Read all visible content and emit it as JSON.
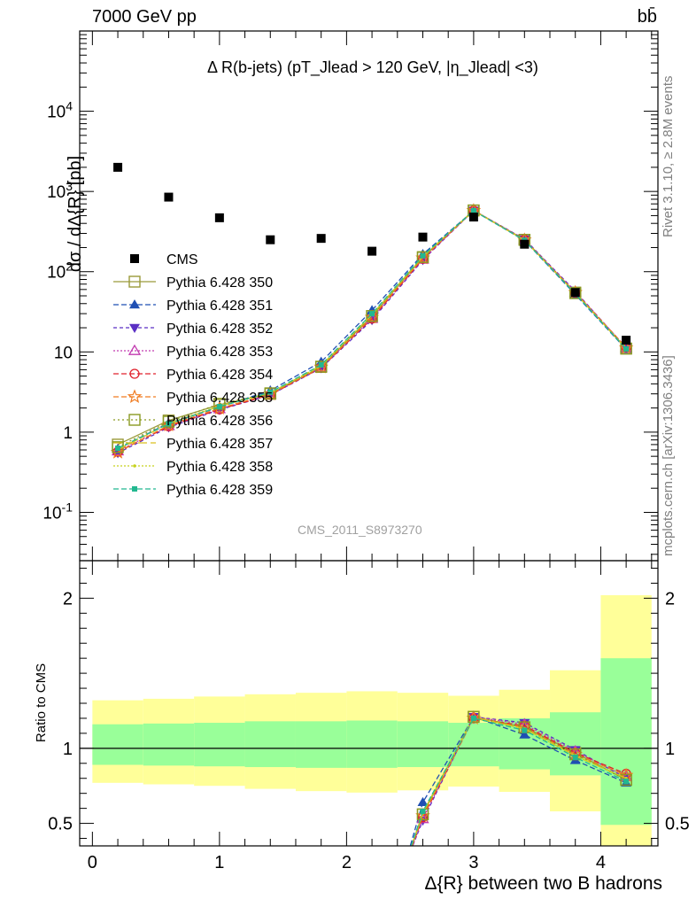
{
  "header": {
    "energy_label": "7000 GeV pp",
    "process_label": "bb̄",
    "rivet_label": "Rivet 3.1.10, ≥ 2.8M events",
    "mcplots_label": "mcplots.cern.ch [arXiv:1306.3436]"
  },
  "chart_data": [
    {
      "type": "scatter",
      "title": "Δ R(b-jets) (pT_Jlead > 120 GeV, |η_Jlead| <3)",
      "analysis_id": "CMS_2011_S8973270",
      "ylabel": "dσ / dΔ{R} [pb]",
      "yscale": "log",
      "ylim": [
        0.025,
        100000
      ],
      "xlim": [
        -0.1,
        4.45
      ],
      "y_tick_labels": [
        "10^-1",
        "1",
        "10",
        "10^2",
        "10^3",
        "10^4"
      ],
      "x": [
        0.2,
        0.6,
        1.0,
        1.4,
        1.8,
        2.2,
        2.6,
        3.0,
        3.4,
        3.8,
        4.2
      ],
      "data": {
        "name": "CMS",
        "values": [
          2000,
          850,
          470,
          250,
          260,
          180,
          270,
          480,
          220,
          55,
          14
        ]
      },
      "series": [
        {
          "name": "Pythia 6.428 350",
          "color": "#9a9a3a",
          "values": [
            0.7,
            1.4,
            2.2,
            3.0,
            6.5,
            28,
            150,
            580,
            250,
            55,
            11
          ]
        },
        {
          "name": "Pythia 6.428 351",
          "color": "#1f4fb3",
          "values": [
            0.62,
            1.3,
            2.05,
            3.3,
            7.5,
            33,
            165,
            575,
            245,
            52,
            10.8
          ]
        },
        {
          "name": "Pythia 6.428 352",
          "color": "#5a2fc4",
          "values": [
            0.55,
            1.15,
            1.9,
            2.9,
            6.3,
            25,
            140,
            580,
            255,
            57,
            11.2
          ]
        },
        {
          "name": "Pythia 6.428 353",
          "color": "#c23bb0",
          "values": [
            0.58,
            1.2,
            1.95,
            2.95,
            6.4,
            26,
            142,
            582,
            252,
            56,
            11.3
          ]
        },
        {
          "name": "Pythia 6.428 354",
          "color": "#e0202c",
          "values": [
            0.57,
            1.18,
            1.92,
            2.92,
            6.35,
            26,
            145,
            578,
            250,
            55,
            11.4
          ]
        },
        {
          "name": "Pythia 6.428 355",
          "color": "#f07c22",
          "values": [
            0.56,
            1.22,
            1.98,
            2.98,
            6.45,
            27,
            148,
            577,
            248,
            55,
            11.2
          ]
        },
        {
          "name": "Pythia 6.428 356",
          "color": "#8a9a22",
          "values": [
            0.65,
            1.35,
            2.25,
            3.05,
            6.55,
            28,
            152,
            580,
            249,
            54,
            11.0
          ]
        },
        {
          "name": "Pythia 6.428 357",
          "color": "#d9c01e",
          "values": [
            0.6,
            1.28,
            2.1,
            3.1,
            6.8,
            29,
            155,
            579,
            247,
            54,
            11.1
          ]
        },
        {
          "name": "Pythia 6.428 358",
          "color": "#c6d21c",
          "values": [
            0.61,
            1.29,
            2.12,
            3.08,
            6.7,
            29,
            154,
            578,
            248,
            54,
            11.1
          ]
        },
        {
          "name": "Pythia 6.428 359",
          "color": "#22b890",
          "values": [
            0.63,
            1.27,
            2.08,
            3.15,
            6.9,
            30,
            158,
            576,
            246,
            53,
            10.9
          ]
        }
      ]
    },
    {
      "type": "line",
      "ylabel": "Ratio to CMS",
      "xlabel": "Δ{R} between two B hadrons",
      "ylim": [
        0.35,
        2.25
      ],
      "xlim": [
        -0.1,
        4.45
      ],
      "x_ticks": [
        0,
        1,
        2,
        3,
        4
      ],
      "y_ticks": [
        0.5,
        1,
        2
      ],
      "bands": {
        "edges": [
          0,
          0.4,
          0.8,
          1.2,
          1.6,
          2.0,
          2.4,
          2.8,
          3.2,
          3.6,
          4.0,
          4.4
        ],
        "inner_lo": [
          0.89,
          0.885,
          0.88,
          0.875,
          0.87,
          0.87,
          0.875,
          0.88,
          0.86,
          0.82,
          0.49
        ],
        "inner_hi": [
          1.16,
          1.165,
          1.17,
          1.18,
          1.18,
          1.185,
          1.18,
          1.17,
          1.2,
          1.24,
          1.6
        ],
        "outer_lo": [
          0.77,
          0.76,
          0.75,
          0.73,
          0.715,
          0.705,
          0.72,
          0.745,
          0.71,
          0.58,
          0.0
        ],
        "outer_hi": [
          1.32,
          1.33,
          1.345,
          1.36,
          1.37,
          1.38,
          1.37,
          1.35,
          1.39,
          1.52,
          2.02
        ]
      },
      "x": [
        2.6,
        3.0,
        3.4,
        3.8,
        4.2
      ],
      "series": [
        {
          "name": "Pythia 6.428 350",
          "values": [
            0.56,
            1.21,
            1.14,
            0.97,
            0.79
          ]
        },
        {
          "name": "Pythia 6.428 351",
          "values": [
            0.64,
            1.21,
            1.09,
            0.92,
            0.77
          ]
        },
        {
          "name": "Pythia 6.428 352",
          "values": [
            0.52,
            1.21,
            1.17,
            0.99,
            0.8
          ]
        },
        {
          "name": "Pythia 6.428 353",
          "values": [
            0.53,
            1.21,
            1.16,
            0.98,
            0.81
          ]
        },
        {
          "name": "Pythia 6.428 354",
          "values": [
            0.54,
            1.2,
            1.15,
            0.97,
            0.83
          ]
        },
        {
          "name": "Pythia 6.428 355",
          "values": [
            0.55,
            1.2,
            1.14,
            0.96,
            0.82
          ]
        },
        {
          "name": "Pythia 6.428 356",
          "values": [
            0.56,
            1.21,
            1.14,
            0.96,
            0.79
          ]
        },
        {
          "name": "Pythia 6.428 357",
          "values": [
            0.57,
            1.21,
            1.13,
            0.95,
            0.8
          ]
        },
        {
          "name": "Pythia 6.428 358",
          "values": [
            0.57,
            1.2,
            1.13,
            0.95,
            0.8
          ]
        },
        {
          "name": "Pythia 6.428 359",
          "values": [
            0.58,
            1.2,
            1.12,
            0.94,
            0.78
          ]
        }
      ]
    }
  ]
}
